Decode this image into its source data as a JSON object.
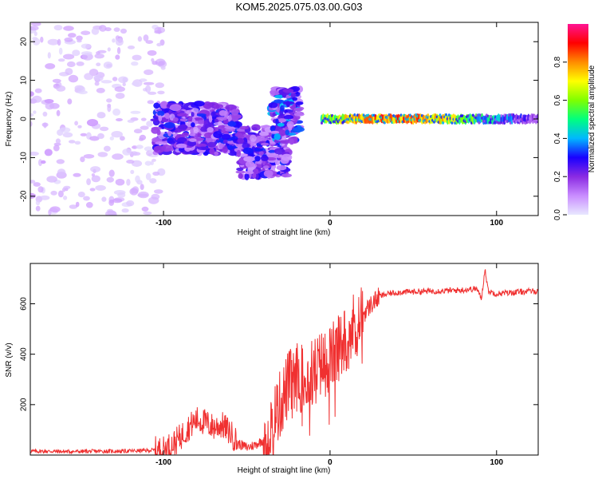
{
  "figure": {
    "title": "KOM5.2025.075.03.00.G03"
  },
  "colors": {
    "snr_line": "#f03030",
    "axis": "#000000",
    "colormap_stops": [
      "#e8e8ff",
      "#c98cff",
      "#8a2be2",
      "#1a00ff",
      "#00b7ff",
      "#00ff7f",
      "#7fff00",
      "#ffff00",
      "#ff8c00",
      "#ff0000",
      "#ff1493"
    ]
  },
  "chart_data": [
    {
      "type": "heatmap",
      "title": "",
      "xlabel": "Height of straight line (km)",
      "ylabel": "Frequency (Hz)",
      "xlim": [
        -180,
        125
      ],
      "ylim": [
        -25,
        25
      ],
      "xticks": [
        -100,
        0,
        100
      ],
      "yticks": [
        -20,
        -10,
        0,
        10,
        20
      ],
      "colorbar": {
        "label": "Normalized spectral amplitude",
        "range": [
          0,
          1
        ],
        "ticks": [
          "0.0",
          "0.2",
          "0.4",
          "0.6",
          "0.8"
        ]
      },
      "features": [
        {
          "x_range": [
            -180,
            -100
          ],
          "freq_range": [
            -25,
            25
          ],
          "amplitude": 0.05,
          "description": "scattered noise"
        },
        {
          "x_range": [
            -105,
            -55
          ],
          "freq_range": [
            -9,
            4
          ],
          "amplitude": 0.2
        },
        {
          "x_range": [
            -55,
            -25
          ],
          "freq_range": [
            -15,
            -2
          ],
          "amplitude": 0.2
        },
        {
          "x_range": [
            -35,
            -18
          ],
          "freq_range": [
            -6,
            8
          ],
          "amplitude": 0.25
        },
        {
          "x_range": [
            -5,
            125
          ],
          "freq_range": [
            -1.5,
            1.5
          ],
          "amplitude": 0.8,
          "center_freq": 0
        }
      ]
    },
    {
      "type": "line",
      "title": "",
      "xlabel": "Height of straight line (km)",
      "ylabel": "SNR (v/v)",
      "xlim": [
        -180,
        125
      ],
      "ylim": [
        0,
        760
      ],
      "xticks": [
        -100,
        0,
        100
      ],
      "yticks": [
        200,
        400,
        600
      ],
      "series": [
        {
          "x": [
            -180,
            -170,
            -160,
            -150,
            -140,
            -130,
            -120,
            -110,
            -100,
            -95,
            -90,
            -85,
            -80,
            -75,
            -70,
            -65,
            -60,
            -55,
            -50,
            -45,
            -40,
            -35,
            -30,
            -25,
            -20,
            -15,
            -10,
            -5,
            0,
            5,
            10,
            15,
            20,
            25,
            30,
            35,
            40,
            50,
            60,
            70,
            80,
            88,
            91,
            93,
            95,
            100,
            110,
            120,
            125
          ],
          "y": [
            15,
            15,
            14,
            14,
            15,
            15,
            16,
            18,
            22,
            40,
            70,
            110,
            140,
            130,
            110,
            120,
            90,
            45,
            30,
            40,
            60,
            120,
            200,
            280,
            310,
            300,
            330,
            360,
            380,
            420,
            470,
            520,
            560,
            600,
            630,
            640,
            645,
            648,
            650,
            652,
            655,
            660,
            620,
            740,
            650,
            640,
            645,
            650,
            650
          ]
        }
      ]
    }
  ]
}
